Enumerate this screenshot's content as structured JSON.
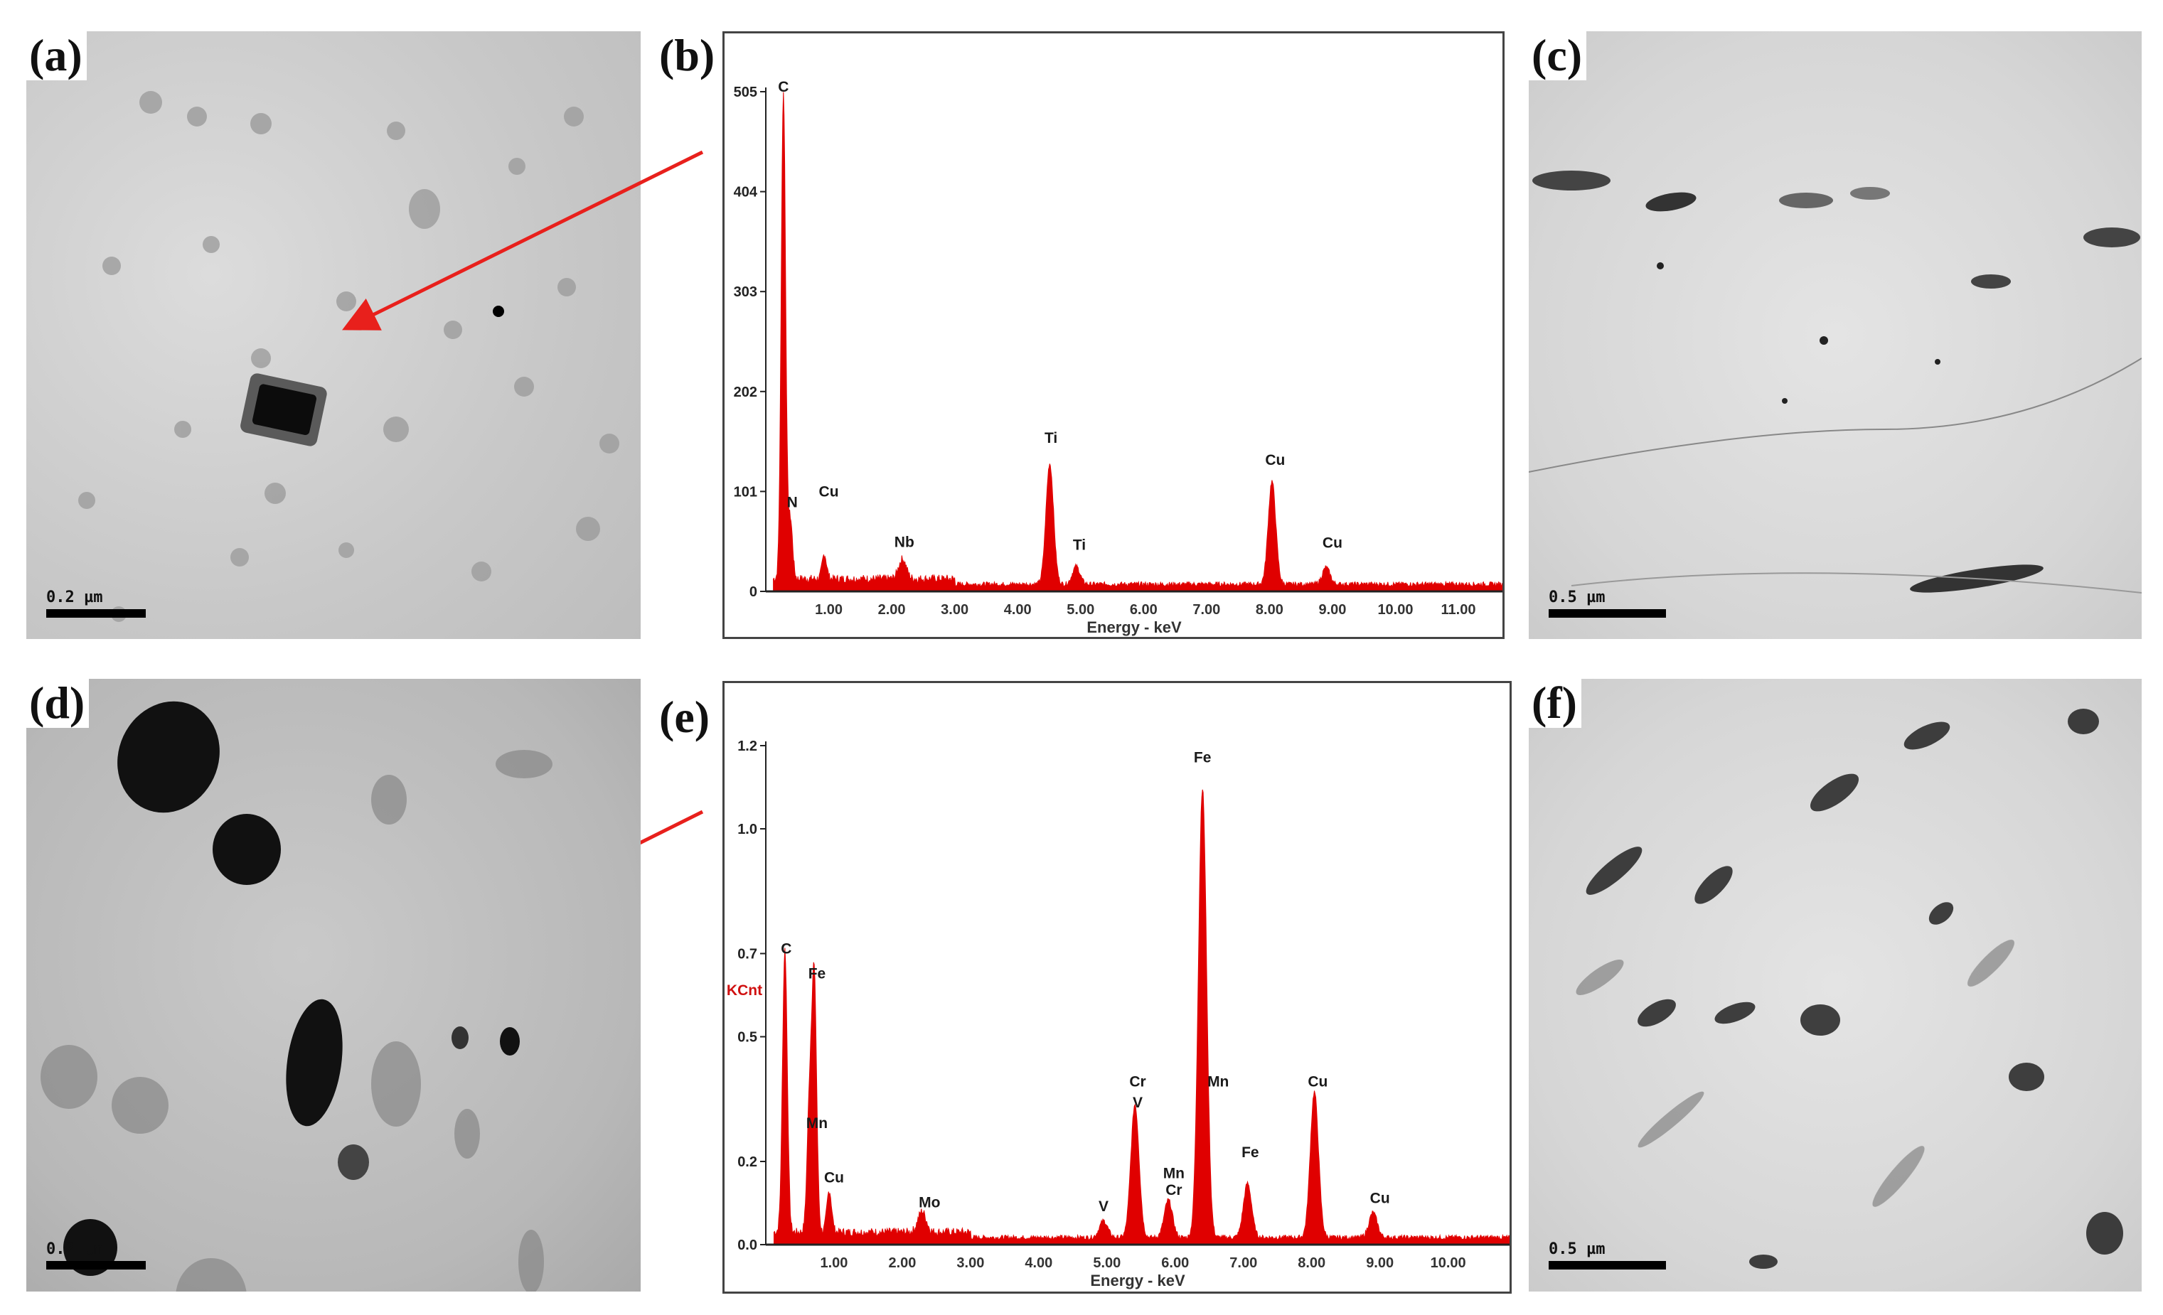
{
  "figure": {
    "panels": [
      {
        "id": "a",
        "label": "(a)",
        "type": "tem-image",
        "scale_bar": "0.2 µm"
      },
      {
        "id": "b",
        "label": "(b)",
        "type": "eds-spectrum"
      },
      {
        "id": "c",
        "label": "(c)",
        "type": "tem-image",
        "scale_bar": "0.5 µm"
      },
      {
        "id": "d",
        "label": "(d)",
        "type": "tem-image",
        "scale_bar": "0.2 µm"
      },
      {
        "id": "e",
        "label": "(e)",
        "type": "eds-spectrum"
      },
      {
        "id": "f",
        "label": "(f)",
        "type": "tem-image",
        "scale_bar": "0.5 µm"
      }
    ],
    "arrow_color": "#e8201c",
    "spectrum_color": "#e00000"
  },
  "chart_data": [
    {
      "type": "bar",
      "panel": "b",
      "title": "",
      "xlabel": "Energy - keV",
      "ylabel": "",
      "xlim": [
        0,
        11.7
      ],
      "ylim": [
        0,
        505
      ],
      "x_ticks": [
        "1.00",
        "2.00",
        "3.00",
        "4.00",
        "5.00",
        "6.00",
        "7.00",
        "8.00",
        "9.00",
        "10.00",
        "11.00"
      ],
      "y_ticks": [
        "0",
        "101",
        "202",
        "303",
        "404",
        "505"
      ],
      "peaks": [
        {
          "element": "C",
          "energy": 0.28,
          "counts": 490
        },
        {
          "element": "N",
          "energy": 0.39,
          "counts": 60
        },
        {
          "element": "Cu",
          "energy": 0.93,
          "counts": 25
        },
        {
          "element": "Nb",
          "energy": 2.17,
          "counts": 20
        },
        {
          "element": "Ti",
          "energy": 4.51,
          "counts": 122
        },
        {
          "element": "Ti",
          "energy": 4.93,
          "counts": 18
        },
        {
          "element": "Cu",
          "energy": 8.04,
          "counts": 104
        },
        {
          "element": "Cu",
          "energy": 8.9,
          "counts": 17
        }
      ],
      "annotations": [
        {
          "text": "C",
          "x": 0.28,
          "y": 505
        },
        {
          "text": "N",
          "x": 0.42,
          "y": 85
        },
        {
          "text": "Cu",
          "x": 1.0,
          "y": 96
        },
        {
          "text": "Nb",
          "x": 2.2,
          "y": 45
        },
        {
          "text": "Ti",
          "x": 4.53,
          "y": 150
        },
        {
          "text": "Ti",
          "x": 4.98,
          "y": 42
        },
        {
          "text": "Cu",
          "x": 8.09,
          "y": 128
        },
        {
          "text": "Cu",
          "x": 9.0,
          "y": 44
        }
      ],
      "grid": false,
      "legend": null
    },
    {
      "type": "bar",
      "panel": "e",
      "title": "",
      "xlabel": "Energy - keV",
      "ylabel": "KCnt",
      "xlim": [
        0,
        10.9
      ],
      "ylim": [
        0,
        1.2
      ],
      "x_ticks": [
        "1.00",
        "2.00",
        "3.00",
        "4.00",
        "5.00",
        "6.00",
        "7.00",
        "8.00",
        "9.00",
        "10.00"
      ],
      "y_ticks": [
        "0.0",
        "0.2",
        "0.5",
        "0.7",
        "1.0",
        "1.2"
      ],
      "peaks": [
        {
          "element": "C",
          "energy": 0.28,
          "counts": 0.68
        },
        {
          "element": "Fe",
          "energy": 0.71,
          "counts": 0.6
        },
        {
          "element": "Mn",
          "energy": 0.64,
          "counts": 0.3
        },
        {
          "element": "Cu",
          "energy": 0.93,
          "counts": 0.1
        },
        {
          "element": "Mo",
          "energy": 2.29,
          "counts": 0.05
        },
        {
          "element": "V",
          "energy": 4.95,
          "counts": 0.04
        },
        {
          "element": "Cr/V",
          "energy": 5.41,
          "counts": 0.32
        },
        {
          "element": "Mn/Cr",
          "energy": 5.9,
          "counts": 0.09
        },
        {
          "element": "Fe/Mn",
          "energy": 6.4,
          "counts": 1.08
        },
        {
          "element": "Fe",
          "energy": 7.06,
          "counts": 0.13
        },
        {
          "element": "Cu",
          "energy": 8.04,
          "counts": 0.35
        },
        {
          "element": "Cu",
          "energy": 8.9,
          "counts": 0.06
        }
      ],
      "annotations": [
        {
          "text": "C",
          "x": 0.3,
          "y": 0.7
        },
        {
          "text": "Fe",
          "x": 0.75,
          "y": 0.64
        },
        {
          "text": "Mn",
          "x": 0.75,
          "y": 0.28
        },
        {
          "text": "Cu",
          "x": 1.0,
          "y": 0.15
        },
        {
          "text": "Mo",
          "x": 2.4,
          "y": 0.09
        },
        {
          "text": "V",
          "x": 4.95,
          "y": 0.08
        },
        {
          "text": "Cr",
          "x": 5.45,
          "y": 0.38
        },
        {
          "text": "V",
          "x": 5.45,
          "y": 0.33
        },
        {
          "text": "Mn",
          "x": 5.98,
          "y": 0.16
        },
        {
          "text": "Cr",
          "x": 5.98,
          "y": 0.12
        },
        {
          "text": "Fe",
          "x": 6.4,
          "y": 1.16
        },
        {
          "text": "Mn",
          "x": 6.63,
          "y": 0.38
        },
        {
          "text": "Fe",
          "x": 7.1,
          "y": 0.21
        },
        {
          "text": "Cu",
          "x": 8.09,
          "y": 0.38
        },
        {
          "text": "Cu",
          "x": 9.0,
          "y": 0.1
        }
      ],
      "grid": false,
      "legend": null
    }
  ]
}
